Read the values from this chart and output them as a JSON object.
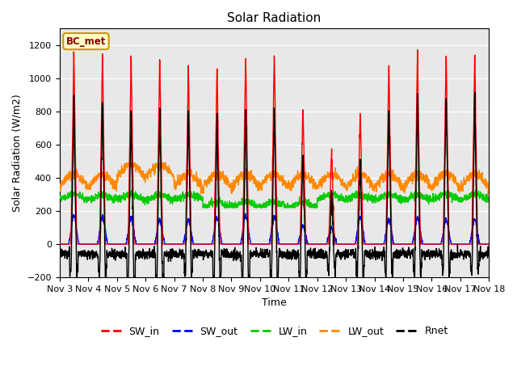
{
  "title": "Solar Radiation",
  "ylabel": "Solar Radiation (W/m2)",
  "xlabel": "Time",
  "ylim": [
    -200,
    1300
  ],
  "yticks": [
    -200,
    0,
    200,
    400,
    600,
    800,
    1000,
    1200
  ],
  "xlim": [
    0,
    15
  ],
  "xtick_labels": [
    "Nov 3",
    "Nov 4",
    "Nov 5",
    "Nov 6",
    "Nov 7",
    "Nov 8",
    "Nov 9",
    "Nov 10",
    "Nov 11",
    "Nov 12",
    "Nov 13",
    "Nov 14",
    "Nov 15",
    "Nov 16",
    "Nov 17",
    "Nov 18"
  ],
  "station_label": "BC_met",
  "colors": {
    "SW_in": "#ff0000",
    "SW_out": "#0000ff",
    "LW_in": "#00cc00",
    "LW_out": "#ff8800",
    "Rnet": "#000000"
  },
  "background_color": "#ffffff",
  "plot_bg_color": "#e8e8e8",
  "line_width": 1.0,
  "sw_peaks": [
    1180,
    1160,
    1150,
    1140,
    1100,
    1090,
    1180,
    1170,
    860,
    580,
    820,
    1120,
    1180,
    1180,
    1160
  ],
  "sw_out_peaks": [
    170,
    165,
    155,
    145,
    145,
    160,
    175,
    165,
    110,
    100,
    160,
    145,
    155,
    150,
    150
  ],
  "lw_in_base": 285,
  "lw_out_base": 340,
  "night_rnet": -60
}
